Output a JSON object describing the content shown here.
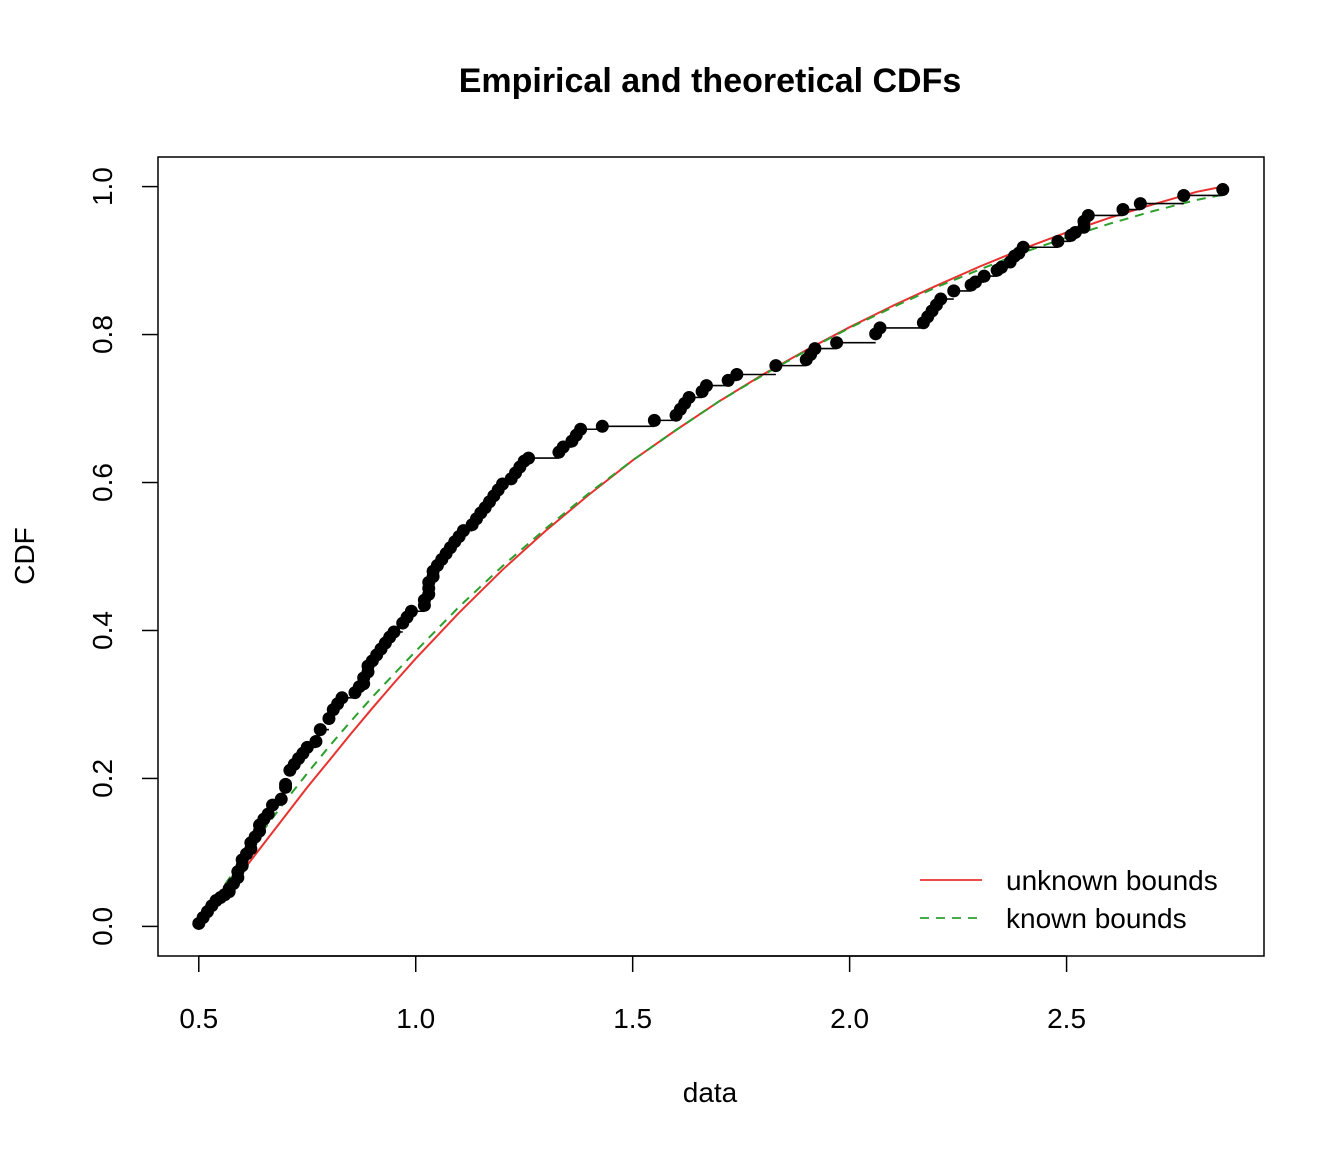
{
  "chart_data": {
    "type": "line",
    "title": "Empirical and theoretical CDFs",
    "xlabel": "data",
    "ylabel": "CDF",
    "xlim": [
      0.406,
      2.955
    ],
    "ylim": [
      -0.04,
      1.04
    ],
    "x_ticks": [
      0.5,
      1.0,
      1.5,
      2.0,
      2.5
    ],
    "x_tick_labels": [
      "0.5",
      "1.0",
      "1.5",
      "2.0",
      "2.5"
    ],
    "y_ticks": [
      0.0,
      0.2,
      0.4,
      0.6,
      0.8,
      1.0
    ],
    "y_tick_labels": [
      "0.0",
      "0.2",
      "0.4",
      "0.6",
      "0.8",
      "1.0"
    ],
    "grid": false,
    "legend_position": "bottom-right",
    "empirical": {
      "color": "#000000",
      "x": [
        0.5,
        0.51,
        0.52,
        0.53,
        0.54,
        0.55,
        0.56,
        0.57,
        0.57,
        0.58,
        0.59,
        0.59,
        0.6,
        0.6,
        0.61,
        0.62,
        0.62,
        0.63,
        0.64,
        0.64,
        0.65,
        0.66,
        0.67,
        0.69,
        0.7,
        0.7,
        0.71,
        0.72,
        0.73,
        0.74,
        0.75,
        0.77,
        0.78,
        0.8,
        0.81,
        0.82,
        0.83,
        0.86,
        0.87,
        0.88,
        0.88,
        0.89,
        0.89,
        0.9,
        0.91,
        0.92,
        0.93,
        0.94,
        0.95,
        0.97,
        0.98,
        0.99,
        1.02,
        1.02,
        1.03,
        1.03,
        1.03,
        1.04,
        1.04,
        1.05,
        1.06,
        1.07,
        1.08,
        1.09,
        1.1,
        1.11,
        1.13,
        1.14,
        1.15,
        1.16,
        1.17,
        1.18,
        1.19,
        1.2,
        1.22,
        1.23,
        1.24,
        1.25,
        1.26,
        1.33,
        1.34,
        1.36,
        1.37,
        1.38,
        1.43,
        1.55,
        1.6,
        1.61,
        1.62,
        1.63,
        1.66,
        1.67,
        1.72,
        1.74,
        1.83,
        1.9,
        1.91,
        1.92,
        1.97,
        2.06,
        2.07,
        2.17,
        2.18,
        2.19,
        2.2,
        2.21,
        2.24,
        2.28,
        2.29,
        2.31,
        2.34,
        2.35,
        2.37,
        2.38,
        2.39,
        2.4,
        2.48,
        2.51,
        2.52,
        2.54,
        2.54,
        2.55,
        2.63,
        2.67,
        2.77,
        2.86
      ],
      "y": [
        0.004,
        0.012,
        0.02,
        0.028,
        0.035,
        0.039,
        0.043,
        0.047,
        0.051,
        0.058,
        0.066,
        0.074,
        0.082,
        0.09,
        0.098,
        0.105,
        0.113,
        0.121,
        0.129,
        0.137,
        0.145,
        0.152,
        0.164,
        0.172,
        0.188,
        0.192,
        0.211,
        0.219,
        0.227,
        0.234,
        0.242,
        0.25,
        0.266,
        0.281,
        0.293,
        0.301,
        0.309,
        0.316,
        0.324,
        0.328,
        0.336,
        0.344,
        0.352,
        0.359,
        0.367,
        0.375,
        0.383,
        0.391,
        0.398,
        0.41,
        0.418,
        0.426,
        0.434,
        0.441,
        0.449,
        0.457,
        0.465,
        0.473,
        0.48,
        0.488,
        0.496,
        0.504,
        0.512,
        0.52,
        0.527,
        0.535,
        0.543,
        0.551,
        0.559,
        0.566,
        0.574,
        0.582,
        0.59,
        0.598,
        0.605,
        0.613,
        0.621,
        0.629,
        0.633,
        0.641,
        0.648,
        0.656,
        0.664,
        0.672,
        0.676,
        0.684,
        0.691,
        0.699,
        0.707,
        0.715,
        0.723,
        0.731,
        0.738,
        0.746,
        0.758,
        0.766,
        0.773,
        0.781,
        0.789,
        0.801,
        0.809,
        0.816,
        0.824,
        0.832,
        0.84,
        0.848,
        0.859,
        0.867,
        0.871,
        0.879,
        0.887,
        0.891,
        0.898,
        0.906,
        0.91,
        0.918,
        0.926,
        0.934,
        0.938,
        0.945,
        0.953,
        0.961,
        0.969,
        0.977,
        0.988,
        0.996
      ]
    },
    "series": [
      {
        "name": "unknown bounds",
        "color": "#e8322f",
        "style": "solid",
        "x": [
          0.5,
          0.55,
          0.6,
          0.65,
          0.7,
          0.75,
          0.8,
          0.85,
          0.9,
          0.95,
          1.0,
          1.1,
          1.2,
          1.3,
          1.4,
          1.5,
          1.6,
          1.7,
          1.8,
          1.9,
          2.0,
          2.1,
          2.2,
          2.3,
          2.4,
          2.5,
          2.6,
          2.7,
          2.8,
          2.86
        ],
        "y": [
          0.0,
          0.036,
          0.074,
          0.112,
          0.15,
          0.188,
          0.224,
          0.26,
          0.295,
          0.329,
          0.362,
          0.424,
          0.482,
          0.535,
          0.584,
          0.63,
          0.671,
          0.71,
          0.746,
          0.779,
          0.81,
          0.839,
          0.866,
          0.892,
          0.916,
          0.938,
          0.958,
          0.976,
          0.993,
          1.0
        ]
      },
      {
        "name": "known bounds",
        "color": "#2ca02c",
        "style": "dashed",
        "x": [
          0.5,
          0.55,
          0.6,
          0.65,
          0.7,
          0.75,
          0.8,
          0.85,
          0.9,
          0.95,
          1.0,
          1.1,
          1.2,
          1.3,
          1.4,
          1.5,
          1.6,
          1.7,
          1.8,
          1.9,
          2.0,
          2.1,
          2.2,
          2.3,
          2.4,
          2.5,
          2.6,
          2.7,
          2.8,
          2.86
        ],
        "y": [
          0.003,
          0.048,
          0.09,
          0.131,
          0.17,
          0.207,
          0.243,
          0.277,
          0.31,
          0.341,
          0.372,
          0.432,
          0.487,
          0.538,
          0.586,
          0.63,
          0.671,
          0.71,
          0.745,
          0.778,
          0.809,
          0.837,
          0.864,
          0.888,
          0.911,
          0.931,
          0.95,
          0.967,
          0.982,
          0.989
        ]
      }
    ]
  }
}
